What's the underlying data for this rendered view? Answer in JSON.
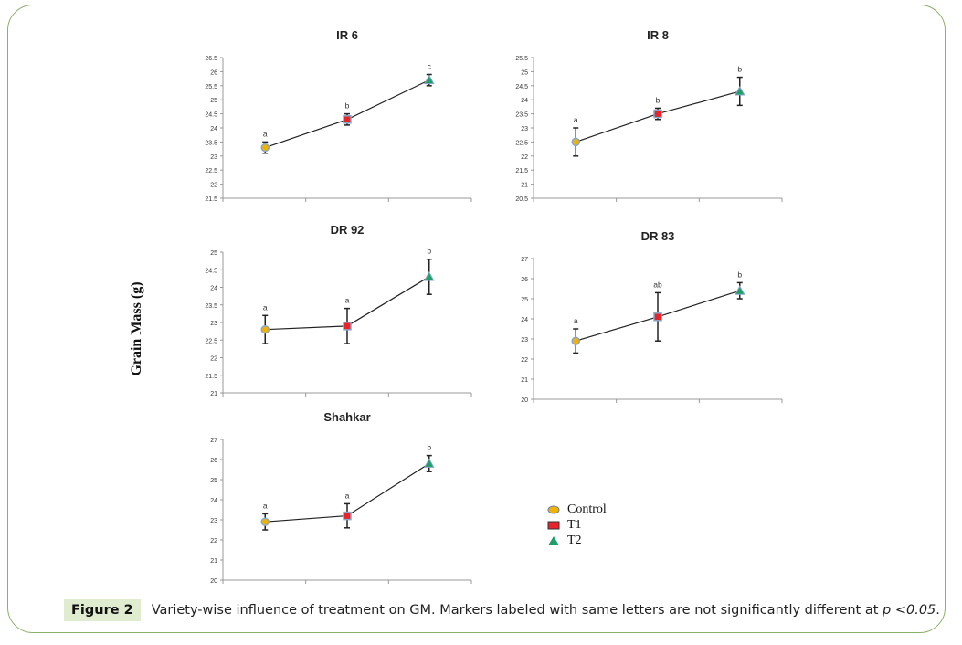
{
  "figure": {
    "label": "Figure 2",
    "caption_main": "Variety-wise influence of treatment on GM. Markers labeled with same letters are not significantly different at ",
    "caption_p": "p <0.05",
    "caption_end": ".",
    "ylabel": "Grain Mass (g)"
  },
  "legend": [
    {
      "name": "Control",
      "marker": "circle",
      "color": "#f0b400"
    },
    {
      "name": "T1",
      "marker": "square",
      "color": "#e8232a"
    },
    {
      "name": "T2",
      "marker": "triangle",
      "color": "#1f9e6a"
    }
  ],
  "chart_data": [
    {
      "type": "line",
      "title": "IR 6",
      "categories": [
        "Control",
        "T1",
        "T2"
      ],
      "values": [
        23.3,
        24.3,
        25.7
      ],
      "errors": [
        0.2,
        0.2,
        0.2
      ],
      "letters": [
        "a",
        "b",
        "c"
      ],
      "ylim": [
        21.5,
        26.5
      ],
      "yticks": [
        "21.5",
        "22",
        "22.5",
        "23",
        "23.5",
        "24",
        "24.5",
        "25",
        "25.5",
        "26",
        "26.5"
      ],
      "ystep": 0.5
    },
    {
      "type": "line",
      "title": "IR 8",
      "categories": [
        "Control",
        "T1",
        "T2"
      ],
      "values": [
        22.5,
        23.5,
        24.3
      ],
      "errors": [
        0.5,
        0.2,
        0.5
      ],
      "letters": [
        "a",
        "b",
        "b"
      ],
      "ylim": [
        20.5,
        25.5
      ],
      "yticks": [
        "20.5",
        "21",
        "21.5",
        "22",
        "22.5",
        "23",
        "23.5",
        "24",
        "24.5",
        "25",
        "25.5"
      ],
      "ystep": 0.5
    },
    {
      "type": "line",
      "title": "DR 92",
      "categories": [
        "Control",
        "T1",
        "T2"
      ],
      "values": [
        22.8,
        22.9,
        24.3
      ],
      "errors": [
        0.4,
        0.5,
        0.5
      ],
      "letters": [
        "a",
        "a",
        "b"
      ],
      "ylim": [
        21,
        25
      ],
      "yticks": [
        "21",
        "21.5",
        "22",
        "22.5",
        "23",
        "23.5",
        "24",
        "24.5",
        "25"
      ],
      "ystep": 0.5
    },
    {
      "type": "line",
      "title": "DR 83",
      "categories": [
        "Control",
        "T1",
        "T2"
      ],
      "values": [
        22.9,
        24.1,
        25.4
      ],
      "errors": [
        0.6,
        1.2,
        0.4
      ],
      "letters": [
        "a",
        "ab",
        "b"
      ],
      "ylim": [
        20,
        27
      ],
      "yticks": [
        "20",
        "21",
        "22",
        "23",
        "24",
        "25",
        "26",
        "27"
      ],
      "ystep": 1
    },
    {
      "type": "line",
      "title": "Shahkar",
      "categories": [
        "Control",
        "T1",
        "T2"
      ],
      "values": [
        22.9,
        23.2,
        25.8
      ],
      "errors": [
        0.4,
        0.6,
        0.4
      ],
      "letters": [
        "a",
        "a",
        "b"
      ],
      "ylim": [
        20,
        27
      ],
      "yticks": [
        "20",
        "21",
        "22",
        "23",
        "24",
        "25",
        "26",
        "27"
      ],
      "ystep": 1
    }
  ]
}
